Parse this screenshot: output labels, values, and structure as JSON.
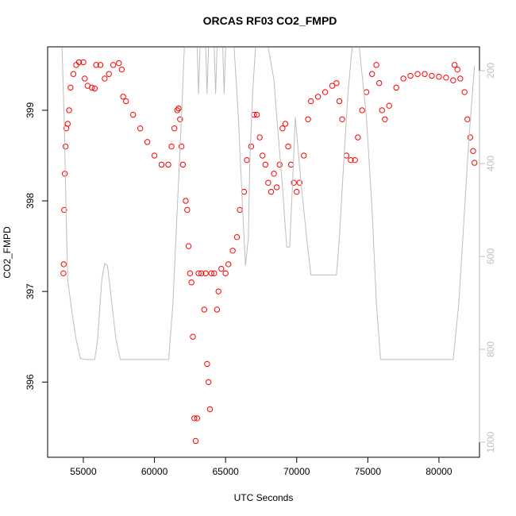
{
  "chart_data": {
    "type": "scatter",
    "title": "ORCAS RF03 CO2_FMPD",
    "x_label": "UTC Seconds",
    "y_label": "CO2_FMPD",
    "xlim": [
      52490,
      82850
    ],
    "ylim": [
      395.17,
      399.7
    ],
    "y2lim": [
      1032.5,
      148.7
    ],
    "xticks": [
      55000,
      60000,
      65000,
      70000,
      75000,
      80000
    ],
    "yticks": [
      396,
      397,
      398,
      399
    ],
    "y2ticks": [
      200,
      400,
      600,
      800,
      1000
    ],
    "series": [
      {
        "color": "#ff0000",
        "x": [
          53600,
          53620,
          53650,
          53700,
          53750,
          53800,
          53900,
          54000,
          54100,
          54300,
          54500,
          54700,
          55000,
          55100,
          55300,
          55600,
          55800,
          55900,
          56200,
          56500,
          56800,
          57100,
          57500,
          57700,
          57800,
          58000,
          58500,
          59000,
          59500,
          60000,
          60500,
          60970,
          61200,
          61400,
          61600,
          61700,
          61800,
          61900,
          62000,
          62200,
          62300,
          62400,
          62500,
          62600,
          62700,
          62800,
          62900,
          63000,
          63100,
          63300,
          63500,
          63600,
          63700,
          63800,
          63900,
          64000,
          64200,
          64400,
          64500,
          64700,
          65000,
          65200,
          65500,
          65800,
          66000,
          66300,
          66500,
          66800,
          67000,
          67200,
          67400,
          67600,
          67800,
          68000,
          68200,
          68400,
          68600,
          68800,
          69000,
          69200,
          69400,
          69600,
          69800,
          70000,
          70200,
          70500,
          70800,
          71000,
          71500,
          72000,
          72500,
          72800,
          73000,
          73200,
          73500,
          73800,
          74100,
          74300,
          74600,
          74900,
          75300,
          75600,
          75800,
          76000,
          76200,
          76500,
          77000,
          77500,
          78000,
          78500,
          79000,
          79500,
          80000,
          80500,
          81000,
          81100,
          81300,
          81500,
          81800,
          82000,
          82200,
          82400,
          82500
        ],
        "values": [
          397.2,
          397.3,
          397.9,
          398.3,
          398.6,
          398.8,
          398.85,
          399.0,
          399.25,
          399.4,
          399.5,
          399.53,
          399.53,
          399.35,
          399.27,
          399.25,
          399.24,
          399.5,
          399.5,
          399.35,
          399.4,
          399.5,
          399.52,
          399.45,
          399.15,
          399.1,
          398.95,
          398.8,
          398.65,
          398.5,
          398.4,
          398.4,
          398.6,
          398.8,
          399.0,
          399.02,
          398.9,
          398.6,
          398.4,
          398.0,
          397.9,
          397.5,
          397.2,
          397.1,
          396.5,
          395.6,
          395.35,
          395.6,
          397.2,
          397.2,
          396.8,
          397.2,
          396.2,
          396.0,
          395.7,
          397.2,
          397.2,
          396.8,
          397.0,
          397.25,
          397.2,
          397.3,
          397.45,
          397.6,
          397.9,
          398.1,
          398.45,
          398.6,
          398.95,
          398.95,
          398.7,
          398.5,
          398.4,
          398.2,
          398.1,
          398.3,
          398.15,
          398.4,
          398.8,
          398.85,
          398.6,
          398.4,
          398.2,
          398.1,
          398.2,
          398.5,
          398.9,
          399.1,
          399.15,
          399.2,
          399.27,
          399.3,
          399.1,
          398.9,
          398.5,
          398.45,
          398.45,
          398.7,
          399.0,
          399.2,
          399.4,
          399.5,
          399.3,
          399.0,
          398.9,
          399.05,
          399.25,
          399.35,
          399.38,
          399.4,
          399.4,
          399.38,
          399.37,
          399.36,
          399.33,
          399.5,
          399.45,
          399.35,
          399.2,
          398.9,
          398.7,
          398.55,
          398.42
        ]
      },
      {
        "color": "#bebebe",
        "axis": "y2",
        "x": [
          53500,
          53650,
          53800,
          53900,
          54200,
          54500,
          54800,
          55200,
          55800,
          56000,
          56300,
          56500,
          56700,
          57000,
          57300,
          57600,
          58000,
          61000,
          61300,
          61600,
          61900,
          62100,
          62600,
          63000,
          63100,
          63200,
          63600,
          63700,
          63800,
          64200,
          64300,
          64400,
          64800,
          64900,
          65000,
          65600,
          65900,
          66200,
          66400,
          66600,
          66700,
          66900,
          67100,
          68000,
          68400,
          68600,
          69000,
          69300,
          69500,
          69700,
          69900,
          70300,
          70700,
          71000,
          71300,
          72800,
          73000,
          73300,
          73600,
          73900,
          74400,
          74900,
          75300,
          75600,
          75900,
          76500,
          81000,
          81400,
          81800,
          82100,
          82500
        ],
        "values": [
          150,
          300,
          520,
          650,
          720,
          780,
          820,
          822,
          822,
          780,
          650,
          615,
          620,
          700,
          780,
          822,
          822,
          822,
          700,
          500,
          300,
          150,
          150,
          150,
          250,
          150,
          150,
          250,
          150,
          150,
          250,
          150,
          150,
          250,
          150,
          150,
          300,
          500,
          620,
          560,
          400,
          250,
          150,
          150,
          220,
          300,
          450,
          580,
          580,
          450,
          300,
          440,
          560,
          640,
          640,
          640,
          560,
          400,
          250,
          150,
          150,
          300,
          500,
          700,
          822,
          822,
          822,
          700,
          500,
          350,
          190
        ]
      }
    ]
  }
}
